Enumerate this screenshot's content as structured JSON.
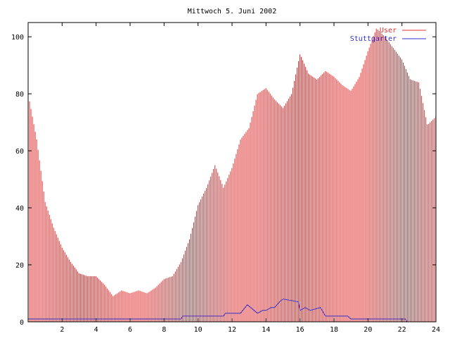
{
  "chart_data": {
    "type": "bar",
    "title": "Mittwoch 5. Juni 2002",
    "xlabel": "",
    "ylabel": "",
    "xlim": [
      0,
      24
    ],
    "ylim": [
      0,
      105
    ],
    "xticks": [
      "2",
      "4",
      "6",
      "8",
      "10",
      "12",
      "14",
      "16",
      "18",
      "20",
      "22",
      "24"
    ],
    "yticks": [
      "0",
      "20",
      "40",
      "60",
      "80",
      "100"
    ],
    "grid": false,
    "legend_position": "top-right",
    "series": [
      {
        "name": "User",
        "style": "impulses",
        "color": "#e03030",
        "x": [
          0.0,
          0.5,
          1.0,
          1.5,
          2.0,
          2.5,
          3.0,
          3.5,
          4.0,
          4.5,
          5.0,
          5.5,
          6.0,
          6.5,
          7.0,
          7.5,
          8.0,
          8.5,
          9.0,
          9.5,
          10.0,
          10.5,
          11.0,
          11.5,
          12.0,
          12.5,
          13.0,
          13.5,
          14.0,
          14.5,
          15.0,
          15.5,
          16.0,
          16.5,
          17.0,
          17.5,
          18.0,
          18.5,
          19.0,
          19.5,
          20.0,
          20.5,
          21.0,
          21.5,
          22.0,
          22.5,
          23.0,
          23.5,
          24.0
        ],
        "values": [
          80,
          64,
          42,
          33,
          26,
          21,
          17,
          16,
          16,
          13,
          9,
          11,
          10,
          11,
          10,
          12,
          15,
          16,
          21,
          29,
          41,
          47,
          55,
          47,
          54,
          64,
          68,
          80,
          82,
          78,
          75,
          80,
          94,
          87,
          85,
          88,
          86,
          83,
          81,
          86,
          95,
          103,
          100,
          96,
          92,
          85,
          84,
          69,
          72
        ]
      },
      {
        "name": "Stuttgarter",
        "style": "line",
        "color": "#3030c8",
        "x": [
          0,
          9,
          9.1,
          9.5,
          9.6,
          11.5,
          11.6,
          12.5,
          12.9,
          13.3,
          13.5,
          13.8,
          14.0,
          14.3,
          14.5,
          14.8,
          15.0,
          15.9,
          16.0,
          16.3,
          16.6,
          17.2,
          17.5,
          18.8,
          19.0,
          22.2,
          22.3,
          24
        ],
        "values": [
          1,
          1,
          2,
          2,
          2,
          2,
          3,
          3,
          6,
          4,
          3,
          4,
          4,
          5,
          5,
          7,
          8,
          7,
          4,
          5,
          4,
          5,
          2,
          2,
          1,
          1,
          0,
          0
        ]
      }
    ]
  }
}
